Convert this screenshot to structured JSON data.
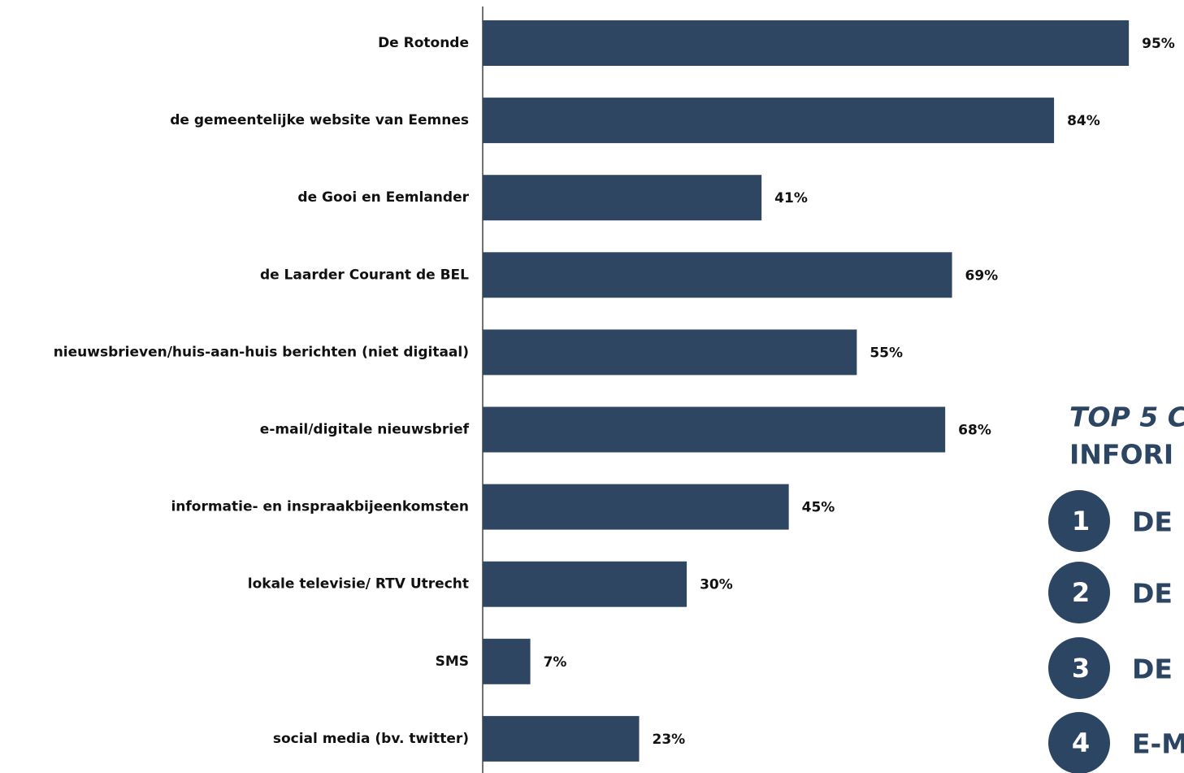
{
  "chart_data": {
    "type": "barh",
    "categories": [
      "De Rotonde",
      "de gemeentelijke website van Eemnes",
      "de Gooi en Eemlander",
      "de Laarder Courant de BEL",
      "nieuwsbrieven/huis-aan-huis berichten (niet digitaal)",
      "e-mail/digitale nieuwsbrief",
      "informatie- en inspraakbijeenkomsten",
      "lokale televisie/ RTV Utrecht",
      "SMS",
      "social media (bv. twitter)"
    ],
    "values": [
      95,
      84,
      41,
      69,
      55,
      68,
      45,
      30,
      7,
      23
    ],
    "value_labels": [
      "95%",
      "84%",
      "41%",
      "69%",
      "55%",
      "68%",
      "45%",
      "30%",
      "7%",
      "23%"
    ],
    "color": "#2e4662",
    "xlim": [
      0,
      100
    ]
  },
  "panel": {
    "title_lines": [
      "TOP 5 C",
      "INFORI"
    ],
    "items": [
      {
        "rank": 1,
        "label": "DE"
      },
      {
        "rank": 2,
        "label": "DE"
      },
      {
        "rank": 3,
        "label": "DE"
      },
      {
        "rank": 4,
        "label": "E-M"
      }
    ]
  }
}
